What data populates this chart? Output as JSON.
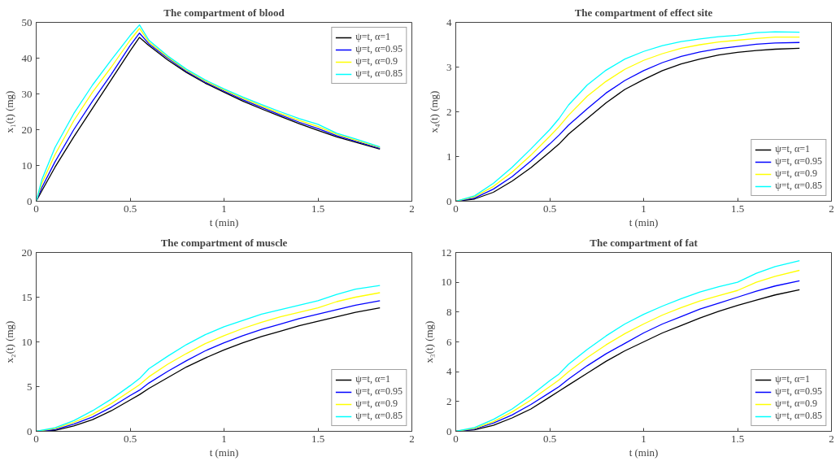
{
  "chart_data": [
    {
      "type": "line",
      "title": "The compartment of blood",
      "xlabel": "t (min)",
      "ylabel": "x₁(t) (mg)",
      "legend": "top right",
      "xlim": [
        0,
        2
      ],
      "ylim": [
        0,
        50
      ],
      "xticks": [
        0,
        0.5,
        1,
        1.5,
        2
      ],
      "yticks": [
        0,
        10,
        20,
        30,
        40,
        50
      ],
      "x": [
        0,
        0.03,
        0.1,
        0.2,
        0.3,
        0.4,
        0.5,
        0.55,
        0.6,
        0.7,
        0.8,
        0.9,
        1.0,
        1.1,
        1.2,
        1.3,
        1.4,
        1.5,
        1.6,
        1.7,
        1.83
      ],
      "series": [
        {
          "name": "ψ=t, α=1",
          "color": "#000000",
          "values": [
            0,
            2.9,
            9.5,
            18,
            26,
            34,
            42,
            45.8,
            43.5,
            39.5,
            36,
            33,
            30.5,
            28,
            25.8,
            23.7,
            21.7,
            19.8,
            18,
            16.5,
            14.6
          ]
        },
        {
          "name": "ψ=t, α=0.95",
          "color": "#0000ff",
          "values": [
            0,
            3.8,
            11,
            20,
            28,
            35.5,
            43.5,
            47,
            44,
            40,
            36.3,
            33.3,
            30.8,
            28.4,
            26.2,
            24.1,
            22.1,
            20.3,
            18.3,
            16.8,
            14.8
          ]
        },
        {
          "name": "ψ=t, α=0.9",
          "color": "#ffff00",
          "values": [
            0,
            5,
            13,
            22.5,
            30.5,
            37.5,
            45,
            48.3,
            44.5,
            40.3,
            36.6,
            33.6,
            31.1,
            28.8,
            26.6,
            24.5,
            22.6,
            20.9,
            18.7,
            17.1,
            15.0
          ]
        },
        {
          "name": "ψ=t, α=0.85",
          "color": "#00ffff",
          "values": [
            0,
            6,
            15,
            24.5,
            32.5,
            39.5,
            46.3,
            49.3,
            45,
            40.6,
            36.9,
            33.9,
            31.4,
            29.1,
            27,
            25,
            23.1,
            21.5,
            19,
            17.4,
            15.2
          ]
        }
      ]
    },
    {
      "type": "line",
      "title": "The compartment of effect site",
      "xlabel": "t (min)",
      "ylabel": "x₄(t) (mg)",
      "legend": "bottom right",
      "xlim": [
        0,
        2
      ],
      "ylim": [
        0,
        4
      ],
      "xticks": [
        0,
        0.5,
        1,
        1.5,
        2
      ],
      "yticks": [
        0,
        1,
        2,
        3,
        4
      ],
      "x": [
        0,
        0.1,
        0.2,
        0.3,
        0.4,
        0.5,
        0.55,
        0.6,
        0.7,
        0.8,
        0.9,
        1.0,
        1.1,
        1.2,
        1.3,
        1.4,
        1.5,
        1.6,
        1.7,
        1.83
      ],
      "series": [
        {
          "name": "ψ=t, α=1",
          "color": "#000000",
          "values": [
            0,
            0.05,
            0.2,
            0.45,
            0.75,
            1.1,
            1.28,
            1.5,
            1.85,
            2.2,
            2.5,
            2.72,
            2.92,
            3.07,
            3.18,
            3.27,
            3.33,
            3.37,
            3.4,
            3.42
          ]
        },
        {
          "name": "ψ=t, α=0.95",
          "color": "#0000ff",
          "values": [
            0,
            0.07,
            0.27,
            0.55,
            0.9,
            1.28,
            1.48,
            1.7,
            2.07,
            2.42,
            2.7,
            2.92,
            3.1,
            3.24,
            3.34,
            3.41,
            3.46,
            3.51,
            3.54,
            3.55
          ]
        },
        {
          "name": "ψ=t, α=0.9",
          "color": "#ffff00",
          "values": [
            0,
            0.1,
            0.33,
            0.65,
            1.03,
            1.45,
            1.67,
            1.92,
            2.35,
            2.68,
            2.95,
            3.15,
            3.3,
            3.42,
            3.5,
            3.56,
            3.6,
            3.64,
            3.67,
            3.67
          ]
        },
        {
          "name": "ψ=t, α=0.85",
          "color": "#00ffff",
          "values": [
            0,
            0.12,
            0.4,
            0.76,
            1.17,
            1.6,
            1.85,
            2.15,
            2.6,
            2.93,
            3.18,
            3.35,
            3.48,
            3.57,
            3.63,
            3.68,
            3.71,
            3.77,
            3.79,
            3.78
          ]
        }
      ]
    },
    {
      "type": "line",
      "title": "The compartment of muscle",
      "xlabel": "t (min)",
      "ylabel": "x₂(t) (mg)",
      "legend": "bottom right",
      "xlim": [
        0,
        2
      ],
      "ylim": [
        0,
        20
      ],
      "xticks": [
        0,
        0.5,
        1,
        1.5,
        2
      ],
      "yticks": [
        0,
        5,
        10,
        15,
        20
      ],
      "x": [
        0,
        0.1,
        0.2,
        0.3,
        0.4,
        0.5,
        0.55,
        0.6,
        0.7,
        0.8,
        0.9,
        1.0,
        1.1,
        1.2,
        1.3,
        1.4,
        1.5,
        1.6,
        1.7,
        1.83
      ],
      "series": [
        {
          "name": "ψ=t, α=1",
          "color": "#000000",
          "values": [
            0,
            0.1,
            0.6,
            1.3,
            2.3,
            3.5,
            4.1,
            4.8,
            6,
            7.2,
            8.2,
            9.1,
            9.9,
            10.6,
            11.2,
            11.8,
            12.3,
            12.8,
            13.3,
            13.8
          ]
        },
        {
          "name": "ψ=t, α=0.95",
          "color": "#0000ff",
          "values": [
            0,
            0.2,
            0.8,
            1.6,
            2.7,
            4,
            4.6,
            5.4,
            6.7,
            7.9,
            9,
            9.9,
            10.7,
            11.4,
            12,
            12.6,
            13.1,
            13.6,
            14.1,
            14.6
          ]
        },
        {
          "name": "ψ=t, α=0.9",
          "color": "#ffff00",
          "values": [
            0,
            0.3,
            1,
            1.9,
            3.1,
            4.5,
            5.2,
            6.1,
            7.5,
            8.7,
            9.8,
            10.7,
            11.5,
            12.2,
            12.8,
            13.3,
            13.8,
            14.5,
            15,
            15.5
          ]
        },
        {
          "name": "ψ=t, α=0.85",
          "color": "#00ffff",
          "values": [
            0,
            0.4,
            1.2,
            2.3,
            3.6,
            5.1,
            5.9,
            7,
            8.4,
            9.7,
            10.8,
            11.7,
            12.4,
            13.1,
            13.6,
            14.1,
            14.6,
            15.3,
            15.9,
            16.3
          ]
        }
      ]
    },
    {
      "type": "line",
      "title": "The compartment of fat",
      "xlabel": "t (min)",
      "ylabel": "x₃(t) (mg)",
      "legend": "bottom right",
      "xlim": [
        0,
        2
      ],
      "ylim": [
        0,
        12
      ],
      "xticks": [
        0,
        0.5,
        1,
        1.5,
        2
      ],
      "yticks": [
        0,
        2,
        4,
        6,
        8,
        10,
        12
      ],
      "x": [
        0,
        0.1,
        0.2,
        0.3,
        0.4,
        0.5,
        0.55,
        0.6,
        0.7,
        0.8,
        0.9,
        1.0,
        1.1,
        1.2,
        1.3,
        1.4,
        1.5,
        1.6,
        1.7,
        1.83
      ],
      "series": [
        {
          "name": "ψ=t, α=1",
          "color": "#000000",
          "values": [
            0,
            0.1,
            0.4,
            0.9,
            1.5,
            2.3,
            2.7,
            3.1,
            3.9,
            4.7,
            5.4,
            6,
            6.6,
            7.1,
            7.6,
            8.05,
            8.45,
            8.8,
            9.15,
            9.5
          ]
        },
        {
          "name": "ψ=t, α=0.95",
          "color": "#0000ff",
          "values": [
            0,
            0.15,
            0.55,
            1.1,
            1.8,
            2.6,
            3,
            3.5,
            4.4,
            5.2,
            5.9,
            6.6,
            7.2,
            7.7,
            8.2,
            8.6,
            9,
            9.4,
            9.75,
            10.1
          ]
        },
        {
          "name": "ψ=t, α=0.9",
          "color": "#ffff00",
          "values": [
            0,
            0.2,
            0.65,
            1.3,
            2.1,
            3,
            3.45,
            4,
            4.95,
            5.8,
            6.55,
            7.2,
            7.8,
            8.3,
            8.75,
            9.1,
            9.45,
            10,
            10.4,
            10.8
          ]
        },
        {
          "name": "ψ=t, α=0.85",
          "color": "#00ffff",
          "values": [
            0,
            0.25,
            0.8,
            1.5,
            2.4,
            3.4,
            3.85,
            4.5,
            5.5,
            6.4,
            7.2,
            7.85,
            8.4,
            8.9,
            9.35,
            9.7,
            10,
            10.6,
            11.05,
            11.45
          ]
        }
      ]
    }
  ]
}
